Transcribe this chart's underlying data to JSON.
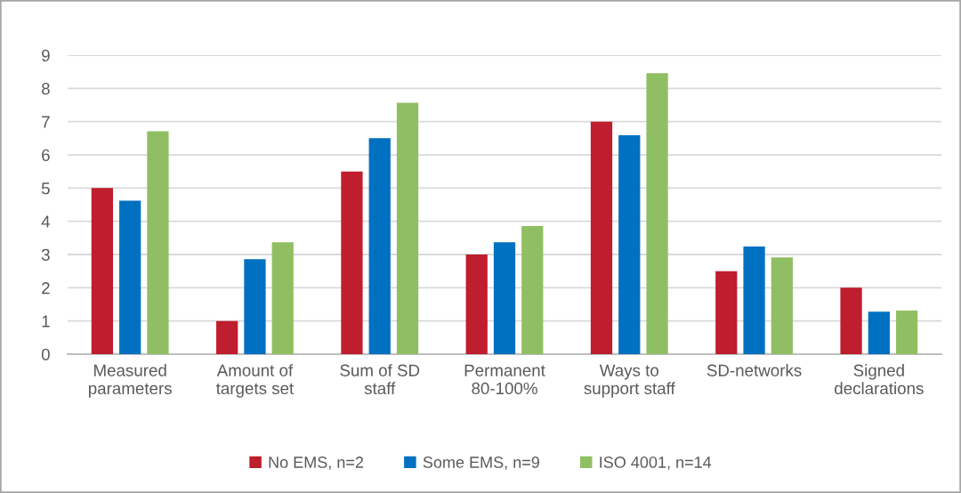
{
  "chart_data": {
    "type": "bar",
    "categories": [
      "Measured\nparameters",
      "Amount of\ntargets set",
      "Sum of SD\nstaff",
      "Permanent\n80-100%",
      "Ways to\nsupport staff",
      "SD-networks",
      "Signed\ndeclarations"
    ],
    "series": [
      {
        "name": "No EMS, n=2",
        "color": "#be1e2d",
        "values": [
          5.0,
          1.0,
          5.5,
          3.0,
          7.0,
          2.5,
          2.0
        ]
      },
      {
        "name": "Some EMS, n=9",
        "color": "#0070c0",
        "values": [
          4.62,
          2.86,
          6.5,
          3.37,
          6.59,
          3.24,
          1.28
        ]
      },
      {
        "name": "ISO 4001, n=14",
        "color": "#90bf63",
        "values": [
          6.71,
          3.37,
          7.57,
          3.86,
          8.46,
          2.91,
          1.31
        ]
      }
    ],
    "ylim": [
      0,
      9
    ],
    "yticks": [
      0,
      1,
      2,
      3,
      4,
      5,
      6,
      7,
      8,
      9
    ],
    "grid": "y",
    "legend": "bottom"
  }
}
